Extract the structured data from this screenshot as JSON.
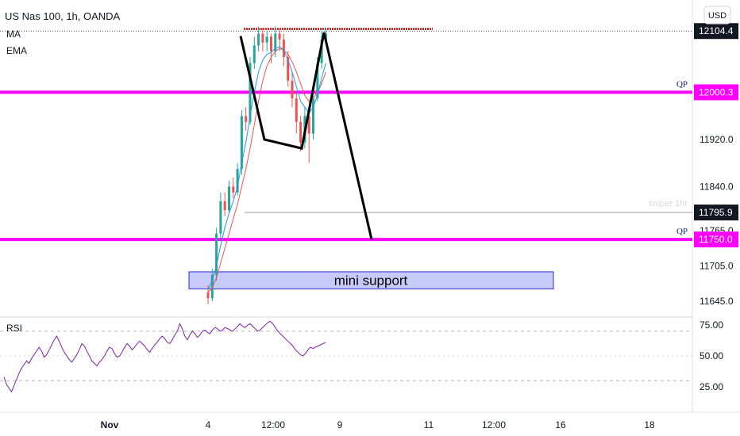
{
  "header": {
    "symbol_line": "US Nas 100, 1h, OANDA",
    "indicators": [
      "MA",
      "EMA"
    ]
  },
  "currency_button": "USD",
  "colors": {
    "magenta": "#ff00ff",
    "candle_up": "#26a69a",
    "candle_down": "#ef5350",
    "ma_line": "#ef5350",
    "ema_line": "#2196f3",
    "rsi_line": "#7e1fa3",
    "projection": "#000000",
    "support_fill": "#c7c9f7",
    "support_border": "#2b2bd6",
    "top_resistance": "#d32f2f"
  },
  "chart_data": [
    {
      "type": "candlestick",
      "title": "US Nas 100, 1h, OANDA",
      "price_ticks": [
        {
          "label": "11645.0",
          "value": 11645
        },
        {
          "label": "11705.0",
          "value": 11705
        },
        {
          "label": "11765.0",
          "value": 11765
        },
        {
          "label": "11840.0",
          "value": 11840
        },
        {
          "label": "11920.0",
          "value": 11920
        }
      ],
      "price_tags": [
        {
          "label": "12104.4",
          "value": 12104.4,
          "style": "dark"
        },
        {
          "label": "12000.3",
          "value": 12000.3,
          "style": "magenta"
        },
        {
          "label": "11795.9",
          "value": 11795.9,
          "style": "dark"
        },
        {
          "label": "11750.0",
          "value": 11750.0,
          "style": "magenta"
        }
      ],
      "x_ticks": [
        {
          "label": "Nov",
          "bold": true
        },
        {
          "label": "4",
          "bold": false
        },
        {
          "label": "12:00",
          "bold": false
        },
        {
          "label": "9",
          "bold": false
        },
        {
          "label": "11",
          "bold": false
        },
        {
          "label": "12:00",
          "bold": false
        },
        {
          "label": "16",
          "bold": false
        },
        {
          "label": "18",
          "bold": false
        }
      ],
      "horizontal_levels": [
        {
          "name": "QP",
          "value": 12000.3,
          "color": "#ff00ff"
        },
        {
          "name": "QP",
          "value": 11750.0,
          "color": "#ff00ff"
        },
        {
          "name": "sniper 1hr",
          "value": 11795.9,
          "color": "#cfcfcf"
        }
      ],
      "resistance_level": 12108,
      "support_zone": {
        "label": "mini support",
        "low": 11666,
        "high": 11695
      },
      "projection_path": [
        12096,
        11920,
        11905,
        12102,
        11750
      ],
      "candles": [
        [
          11660,
          11650,
          11672,
          11640
        ],
        [
          11650,
          11690,
          11700,
          11645
        ],
        [
          11690,
          11760,
          11770,
          11680
        ],
        [
          11760,
          11815,
          11830,
          11750
        ],
        [
          11815,
          11800,
          11830,
          11790
        ],
        [
          11800,
          11840,
          11850,
          11795
        ],
        [
          11840,
          11830,
          11855,
          11820
        ],
        [
          11830,
          11870,
          11880,
          11825
        ],
        [
          11870,
          11960,
          11970,
          11860
        ],
        [
          11960,
          11950,
          11975,
          11935
        ],
        [
          11950,
          12050,
          12060,
          11945
        ],
        [
          12050,
          12080,
          12095,
          12040
        ],
        [
          12080,
          12100,
          12112,
          12070
        ],
        [
          12100,
          12085,
          12110,
          12070
        ],
        [
          12085,
          12095,
          12105,
          12070
        ],
        [
          12095,
          12070,
          12100,
          12050
        ],
        [
          12070,
          12100,
          12112,
          12060
        ],
        [
          12100,
          12090,
          12108,
          12070
        ],
        [
          12090,
          12060,
          12100,
          12045
        ],
        [
          12060,
          12020,
          12070,
          12010
        ],
        [
          12020,
          11990,
          12035,
          11975
        ],
        [
          11990,
          11950,
          12000,
          11930
        ],
        [
          11950,
          11915,
          11960,
          11900
        ],
        [
          11915,
          11960,
          11975,
          11905
        ],
        [
          11960,
          11930,
          11970,
          11880
        ],
        [
          11930,
          11990,
          12010,
          11920
        ],
        [
          11990,
          12050,
          12060,
          11985
        ],
        [
          12050,
          12090,
          12105,
          12040
        ],
        [
          12090,
          12100,
          12110,
          12080
        ]
      ],
      "ma": [
        11660,
        11668,
        11685,
        11710,
        11735,
        11760,
        11785,
        11810,
        11840,
        11870,
        11905,
        11945,
        11985,
        12020,
        12045,
        12060,
        12070,
        12075,
        12072,
        12065,
        12052,
        12035,
        12015,
        11995,
        11985,
        11990,
        12000,
        12015,
        12035
      ],
      "ema": [
        11665,
        11680,
        11705,
        11740,
        11770,
        11795,
        11815,
        11840,
        11880,
        11915,
        11960,
        12000,
        12035,
        12055,
        12065,
        12068,
        12075,
        12078,
        12072,
        12055,
        12035,
        12010,
        11985,
        11975,
        11965,
        11975,
        11995,
        12025,
        12050
      ]
    },
    {
      "type": "line",
      "title": "RSI",
      "y_ticks": [
        {
          "label": "75.00",
          "value": 75
        },
        {
          "label": "50.00",
          "value": 50
        },
        {
          "label": "25.00",
          "value": 25
        }
      ],
      "guide_levels": [
        70,
        30
      ],
      "values": [
        33,
        27,
        24,
        21,
        26,
        31,
        36,
        40,
        43,
        46,
        44,
        48,
        51,
        54,
        57,
        54,
        49,
        51,
        55,
        59,
        63,
        66,
        62,
        57,
        53,
        50,
        47,
        45,
        48,
        51,
        55,
        60,
        58,
        54,
        50,
        46,
        44,
        42,
        45,
        47,
        50,
        54,
        57,
        56,
        52,
        49,
        50,
        53,
        57,
        60,
        58,
        55,
        57,
        60,
        62,
        60,
        58,
        55,
        53,
        56,
        59,
        61,
        64,
        66,
        64,
        61,
        60,
        63,
        67,
        70,
        76,
        72,
        66,
        63,
        67,
        70,
        68,
        65,
        67,
        70,
        71,
        69,
        68,
        71,
        73,
        72,
        70,
        71,
        73,
        72,
        71,
        70,
        72,
        74,
        76,
        74,
        73,
        75,
        76,
        74,
        72,
        70,
        71,
        73,
        75,
        77,
        78,
        76,
        73,
        70,
        68,
        66,
        64,
        62,
        60,
        58,
        55,
        53,
        51,
        50,
        52,
        55,
        57,
        56,
        57,
        58,
        59,
        60,
        61
      ]
    }
  ]
}
